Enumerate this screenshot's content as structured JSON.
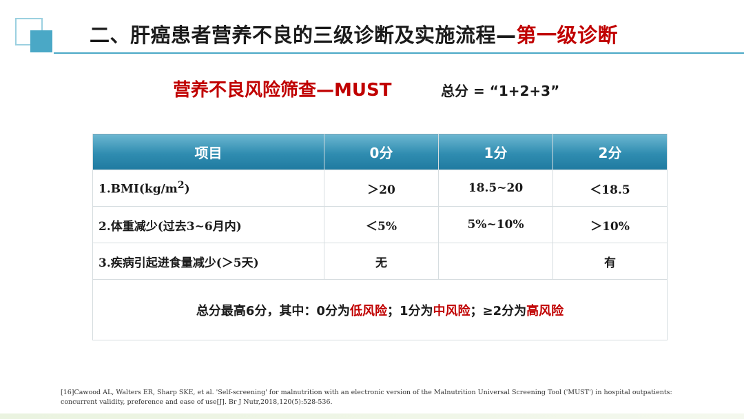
{
  "header": {
    "title_main": "二、肝癌患者营养不良的三级诊断及实施流程—",
    "title_accent": "第一级诊断"
  },
  "subtitle": "营养不良风险筛查—MUST",
  "formula": "总分 = “1+2+3”",
  "table": {
    "headers": [
      "项目",
      "0分",
      "1分",
      "2分"
    ],
    "rows": [
      {
        "item": "1.BMI(kg/m",
        "item_sup": "2",
        "item_tail": ")",
        "s0": "＞20",
        "s1": "18.5~20",
        "s2": "＜18.5"
      },
      {
        "item": "2.体重减少(过去3~6月内)",
        "s0": "＜5%",
        "s1": "5%~10%",
        "s2": "＞10%"
      },
      {
        "item": "3.疾病引起进食量减少(＞5天)",
        "s0": "无",
        "s1": "",
        "s2": "有"
      }
    ],
    "summary": {
      "p1": "总分最高6分，其中：0分为",
      "r1": "低风险",
      "p2": "；1分为",
      "r2": "中风险",
      "p3": "；≥2分为",
      "r3": "高风险"
    }
  },
  "footnote": "[16]Cawood AL, Walters ER, Sharp SKE, et al. 'Self-screening' for malnutrition with an electronic version of the Malnutrition Universal Screening Tool ('MUST') in hospital outpatients: concurrent validity, preference and ease of use[J]. Br J Nutr,2018,120(5):528-536.",
  "colors": {
    "accent_red": "#c00000",
    "header_blue": "#2f8cb0",
    "deco_teal": "#4aa8c6"
  }
}
